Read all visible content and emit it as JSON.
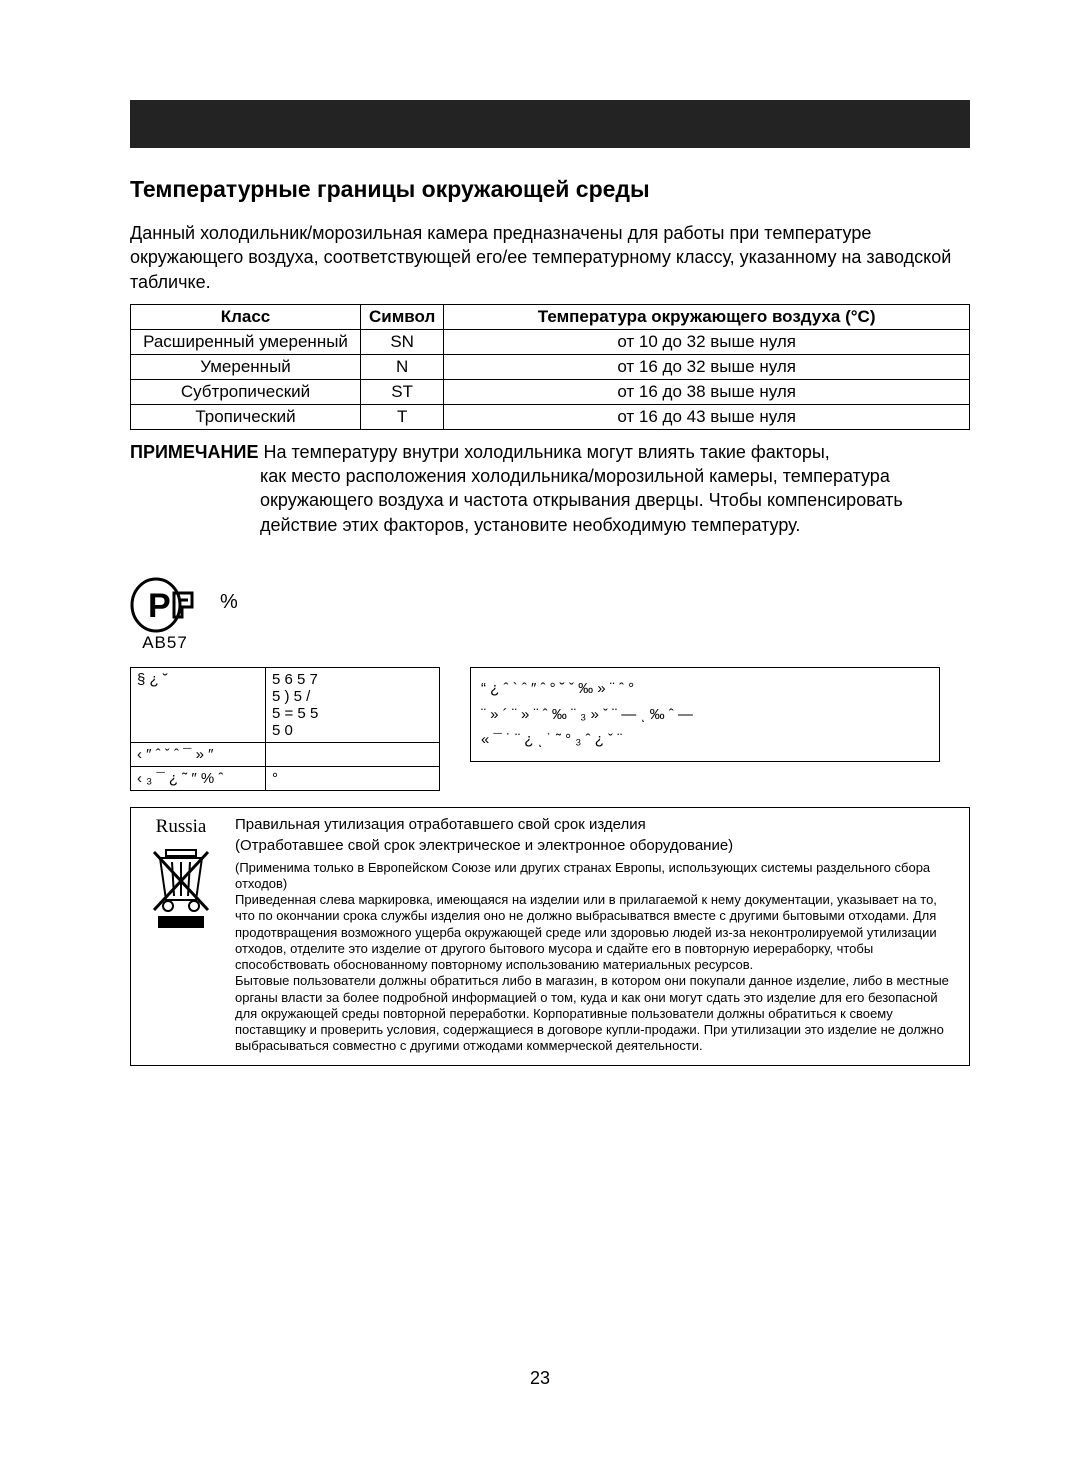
{
  "bar_color": "#232323",
  "section_title": "Температурные границы окружающей среды",
  "intro": "Данный холодильник/морозильная камера предназначены для работы при температуре окружающего воздуха, соответствующей его/ее температурному классу, указанному на заводской табличке.",
  "climate_table": {
    "headers": [
      "Класс",
      "Символ",
      "Температура окружающего воздуха (°C)"
    ],
    "rows": [
      [
        "Расширенный умеренный",
        "SN",
        "от 10 до 32 выше нуля"
      ],
      [
        "Умеренный",
        "N",
        "от 16 до 32 выше нуля"
      ],
      [
        "Субтропический",
        "ST",
        "от 16 до 38 выше нуля"
      ],
      [
        "Тропический",
        "T",
        "от 16 до 43 выше нуля"
      ]
    ]
  },
  "note_label": "ПРИМЕЧАНИЕ",
  "note_first": "На температуру внутри холодильника могут влиять такие факторы,",
  "note_rest": "как место расположения холодильника/морозильной камеры, температура окружающего воздуха и частота открывания дверцы. Чтобы компенсировать действие этих факторов, установите необходимую температуру.",
  "cert": {
    "code": "AB57",
    "side": "%"
  },
  "model_table": {
    "rows": [
      [
        "§   ¿  ˘",
        "5 6          5 7\n5 )          5 /\n5 =          5 5\n5 0"
      ],
      [
        "‹   ″ ˆ ˇ ˆ ¯  »  ″",
        ""
      ],
      [
        "‹ ₃ ¯  ¿  ˜  ″ %  ˆ",
        "°"
      ]
    ]
  },
  "address_box": "“    ¿  ˆ   ` ˆ ″  ˆ   °  ˘  ˇ   ‰ » ¨ ˆ   °\n¨  » ´ ¨  »     ¨ ˆ    ‰   ¨ ₃  »  ˇ  ¨    —  ͺ   ‰ ˆ   —\n  «   ¯  ˙  ¨  ¿ ͺ ˙  ˜  °   ₃  ˆ ¿    ˇ  ¨",
  "disposal": {
    "country": "Russia",
    "title1": "Правильная утилизация отработавшего свой срок изделия",
    "title2": "(Отработавшее свой срок электрическое и электронное оборудование)",
    "body": "(Применима только в Европейском Союзе или других странах Европы, использующих системы раздельного сбора отходов)\nПриведенная слева маркировка, имеющаяся на изделии или в прилагаемой к нему документации, указывает на то, что по окончании срока службы изделия оно не должно выбрасыватвся вместе с другими бытовыми отходами. Для продотвращения возможного ущерба окружающей среде или здоровью людей из-за неконтролируемой утилизации отходов, отделите это изделие от другого бытового мусора и сдайте его в повторную иерераборку, чтобы способствовать обоснованному повторному использованию материальных ресурсов.\nБытовые пользователи должны обратиться либо в магазин, в котором они покупали данное изделие, либо в местные органы власти за более подробной информацией о том, куда и как они могут сдать это изделие для его безопасной для окружающей среды повторной переработки. Корпоративные пользователи должны обратиться к своему поставщику и проверить условия, содержащиеся в договоре купли-продажи. При утилизации это изделие не должно выбрасываться совместно с другими отжодами коммерческой деятельности."
  },
  "page_number": "23"
}
